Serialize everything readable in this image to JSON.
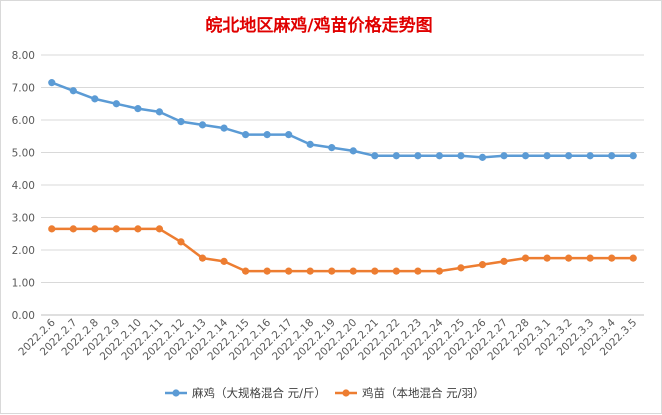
{
  "chart_data": {
    "type": "line",
    "title": "皖北地区麻鸡/鸡苗价格走势图",
    "categories": [
      "2022.2.6",
      "2022.2.7",
      "2022.2.8",
      "2022.2.9",
      "2022.2.10",
      "2022.2.11",
      "2022.2.12",
      "2022.2.13",
      "2022.2.14",
      "2022.2.15",
      "2022.2.16",
      "2022.2.17",
      "2022.2.18",
      "2022.2.19",
      "2022.2.20",
      "2022.2.21",
      "2022.2.22",
      "2022.2.23",
      "2022.2.24",
      "2022.2.25",
      "2022.2.26",
      "2022.2.27",
      "2022.2.28",
      "2022.3.1",
      "2022.3.2",
      "2022.3.3",
      "2022.3.4",
      "2022.3.5"
    ],
    "series": [
      {
        "name": "麻鸡（大规格混合 元/斤）",
        "color": "#5b9bd5",
        "values": [
          7.15,
          6.9,
          6.65,
          6.5,
          6.35,
          6.25,
          5.95,
          5.85,
          5.75,
          5.55,
          5.55,
          5.55,
          5.25,
          5.15,
          5.05,
          4.9,
          4.9,
          4.9,
          4.9,
          4.9,
          4.85,
          4.9,
          4.9,
          4.9,
          4.9,
          4.9,
          4.9,
          4.9
        ]
      },
      {
        "name": "鸡苗（本地混合 元/羽）",
        "color": "#ed7d31",
        "values": [
          2.65,
          2.65,
          2.65,
          2.65,
          2.65,
          2.65,
          2.25,
          1.75,
          1.65,
          1.35,
          1.35,
          1.35,
          1.35,
          1.35,
          1.35,
          1.35,
          1.35,
          1.35,
          1.35,
          1.45,
          1.55,
          1.65,
          1.75,
          1.75,
          1.75,
          1.75,
          1.75,
          1.75
        ]
      }
    ],
    "yticks": [
      "0.00",
      "1.00",
      "2.00",
      "3.00",
      "4.00",
      "5.00",
      "6.00",
      "7.00",
      "8.00"
    ],
    "ylim": [
      0,
      8
    ],
    "grid": true,
    "legend_position": "bottom"
  }
}
